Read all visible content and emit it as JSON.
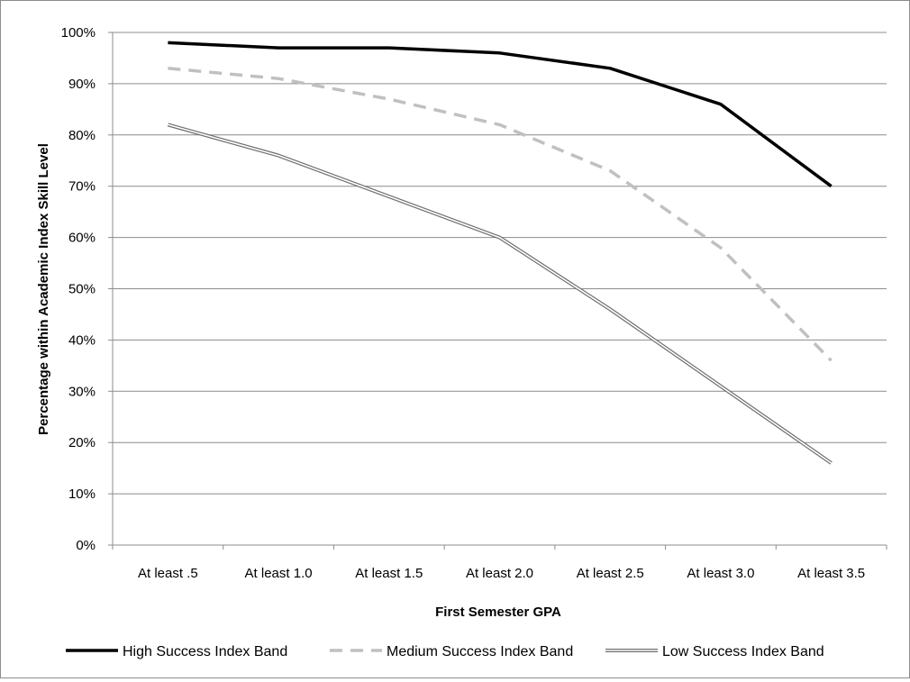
{
  "chart_data": {
    "type": "line",
    "title": "",
    "xlabel": "First Semester GPA",
    "ylabel": "Percentage within Academic Index Skill Level",
    "categories": [
      "At least .5",
      "At least 1.0",
      "At least 1.5",
      "At least 2.0",
      "At least 2.5",
      "At least 3.0",
      "At least 3.5"
    ],
    "ylim": [
      0,
      100
    ],
    "yticks": [
      0,
      10,
      20,
      30,
      40,
      50,
      60,
      70,
      80,
      90,
      100
    ],
    "ytick_labels": [
      "0%",
      "10%",
      "20%",
      "30%",
      "40%",
      "50%",
      "60%",
      "70%",
      "80%",
      "90%",
      "100%"
    ],
    "grid": "horizontal",
    "legend_position": "bottom",
    "series": [
      {
        "name": "High Success Index Band",
        "values": [
          98,
          97,
          97,
          96,
          93,
          86,
          70
        ],
        "color": "#000000",
        "style": "solid"
      },
      {
        "name": "Medium Success Index Band",
        "values": [
          93,
          91,
          87,
          82,
          73,
          58,
          36
        ],
        "color": "#c0c0c0",
        "style": "dashed"
      },
      {
        "name": "Low Success Index Band",
        "values": [
          82,
          76,
          68,
          60,
          46,
          31,
          16
        ],
        "color": "#6e6e6e",
        "style": "double"
      }
    ]
  }
}
